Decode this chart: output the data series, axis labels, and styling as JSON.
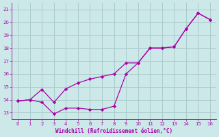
{
  "xlabel": "Windchill (Refroidissement éolien,°C)",
  "bg_color": "#cce8e8",
  "grid_color": "#aacccc",
  "line_color": "#aa00aa",
  "ylim": [
    12.5,
    21.5
  ],
  "xlim": [
    -0.5,
    16.5
  ],
  "yticks": [
    13,
    14,
    15,
    16,
    17,
    18,
    19,
    20,
    21
  ],
  "xticks": [
    0,
    1,
    2,
    3,
    4,
    5,
    6,
    7,
    8,
    9,
    10,
    11,
    12,
    13,
    14,
    15,
    16
  ],
  "line1_x": [
    0,
    1,
    2,
    3,
    4,
    5,
    6,
    7,
    8,
    9,
    10,
    11,
    12,
    13,
    14,
    15,
    16
  ],
  "line1_y": [
    13.9,
    14.0,
    13.8,
    12.9,
    13.35,
    13.35,
    13.25,
    13.25,
    13.5,
    16.0,
    16.85,
    18.0,
    18.0,
    18.1,
    19.5,
    20.7,
    20.2
  ],
  "line2_x": [
    0,
    1,
    2,
    3,
    4,
    5,
    6,
    7,
    8,
    9,
    10,
    11,
    12,
    13,
    14,
    15,
    16
  ],
  "line2_y": [
    13.9,
    14.0,
    14.8,
    13.8,
    14.85,
    15.3,
    15.6,
    15.8,
    16.0,
    16.85,
    16.85,
    18.0,
    18.0,
    18.1,
    19.5,
    20.7,
    20.2
  ]
}
